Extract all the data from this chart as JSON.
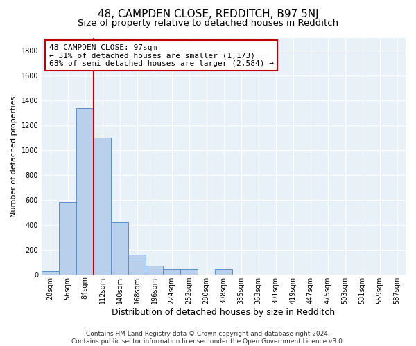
{
  "title1": "48, CAMPDEN CLOSE, REDDITCH, B97 5NJ",
  "title2": "Size of property relative to detached houses in Redditch",
  "xlabel": "Distribution of detached houses by size in Redditch",
  "ylabel": "Number of detached properties",
  "categories": [
    "28sqm",
    "56sqm",
    "84sqm",
    "112sqm",
    "140sqm",
    "168sqm",
    "196sqm",
    "224sqm",
    "252sqm",
    "280sqm",
    "308sqm",
    "335sqm",
    "363sqm",
    "391sqm",
    "419sqm",
    "447sqm",
    "475sqm",
    "503sqm",
    "531sqm",
    "559sqm",
    "587sqm"
  ],
  "bar_values": [
    25,
    580,
    1340,
    1100,
    420,
    160,
    70,
    45,
    45,
    0,
    40,
    0,
    0,
    0,
    0,
    0,
    0,
    0,
    0,
    0,
    0
  ],
  "bar_color": "#b8d0eb",
  "bar_edge_color": "#5b8fc9",
  "vline_color": "#c00000",
  "annotation_line1": "48 CAMPDEN CLOSE: 97sqm",
  "annotation_line2": "← 31% of detached houses are smaller (1,173)",
  "annotation_line3": "68% of semi-detached houses are larger (2,584) →",
  "annotation_box_color": "#ffffff",
  "annotation_box_edge_color": "#c00000",
  "ylim": [
    0,
    1900
  ],
  "yticks": [
    0,
    200,
    400,
    600,
    800,
    1000,
    1200,
    1400,
    1600,
    1800
  ],
  "footer": "Contains HM Land Registry data © Crown copyright and database right 2024.\nContains public sector information licensed under the Open Government Licence v3.0.",
  "bg_color": "#e8f0f8",
  "grid_color": "#ffffff",
  "title1_fontsize": 11,
  "title2_fontsize": 9.5,
  "xlabel_fontsize": 9,
  "ylabel_fontsize": 8,
  "footer_fontsize": 6.5,
  "annotation_fontsize": 8,
  "tick_fontsize": 7
}
